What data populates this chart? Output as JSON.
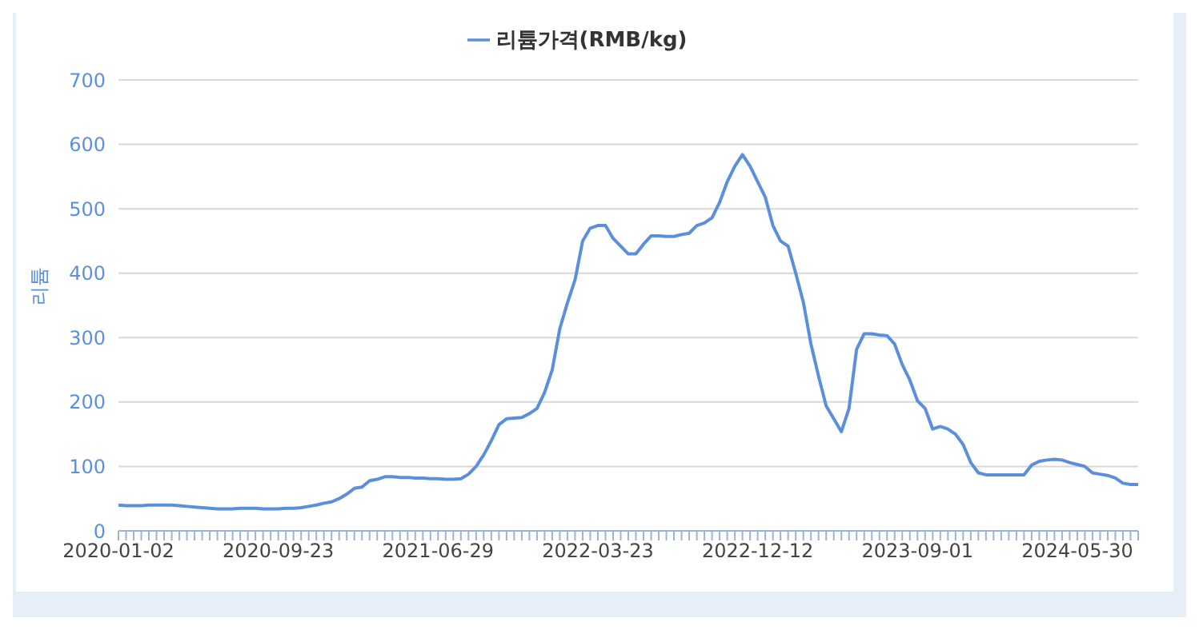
{
  "chart_data": {
    "type": "line",
    "ylabel": "리튬",
    "legend": "top",
    "categories": [
      "2020-01-02",
      null,
      null,
      null,
      null,
      null,
      null,
      null,
      null,
      null,
      null,
      null,
      null,
      null,
      null,
      null,
      null,
      null,
      null,
      null,
      null,
      "2020-09-23",
      null,
      null,
      null,
      null,
      null,
      null,
      null,
      null,
      null,
      null,
      null,
      null,
      null,
      null,
      null,
      null,
      null,
      null,
      null,
      null,
      "2021-06-29",
      null,
      null,
      null,
      null,
      null,
      null,
      null,
      null,
      null,
      null,
      null,
      null,
      null,
      null,
      null,
      null,
      null,
      null,
      null,
      null,
      "2022-03-23",
      null,
      null,
      null,
      null,
      null,
      null,
      null,
      null,
      null,
      null,
      null,
      null,
      null,
      null,
      null,
      null,
      null,
      null,
      null,
      null,
      "2022-12-12",
      null,
      null,
      null,
      null,
      null,
      null,
      null,
      null,
      null,
      null,
      null,
      null,
      null,
      null,
      null,
      null,
      null,
      null,
      null,
      null,
      "2023-09-01",
      null,
      null,
      null,
      null,
      null,
      null,
      null,
      null,
      null,
      null,
      null,
      null,
      null,
      null,
      null,
      null,
      null,
      null,
      null,
      null,
      "2024-05-30",
      null,
      null,
      null,
      null,
      null,
      null,
      null,
      null
    ],
    "series": [
      {
        "name": "리튬가격(RMB/kg)",
        "color": "#5b8fdc",
        "values": [
          40,
          39,
          39,
          39,
          40,
          40,
          40,
          40,
          39,
          38,
          37,
          36,
          35,
          34,
          34,
          34,
          35,
          35,
          35,
          34,
          34,
          34,
          35,
          35,
          36,
          38,
          40,
          43,
          45,
          50,
          57,
          66,
          68,
          78,
          80,
          84,
          84,
          83,
          83,
          82,
          82,
          81,
          81,
          80,
          80,
          81,
          88,
          100,
          118,
          140,
          165,
          174,
          175,
          176,
          182,
          190,
          215,
          250,
          314,
          354,
          390,
          450,
          470,
          474,
          474,
          454,
          442,
          430,
          430,
          445,
          458,
          458,
          457,
          457,
          460,
          462,
          474,
          478,
          486,
          510,
          542,
          566,
          584,
          566,
          542,
          518,
          474,
          450,
          442,
          400,
          355,
          290,
          240,
          194,
          174,
          154,
          190,
          282,
          306,
          306,
          304,
          303,
          290,
          258,
          234,
          202,
          190,
          158,
          162,
          158,
          150,
          134,
          106,
          90,
          87,
          87,
          87,
          87,
          87,
          87,
          102,
          108,
          110,
          111,
          110,
          106,
          103,
          100,
          90,
          88,
          86,
          82,
          74,
          72,
          72
        ]
      }
    ],
    "ylim": [
      0,
      700
    ],
    "yticks": [
      0,
      100,
      200,
      300,
      400,
      500,
      600,
      700
    ],
    "grid": "y",
    "marker": "none",
    "line_style": "solid"
  }
}
